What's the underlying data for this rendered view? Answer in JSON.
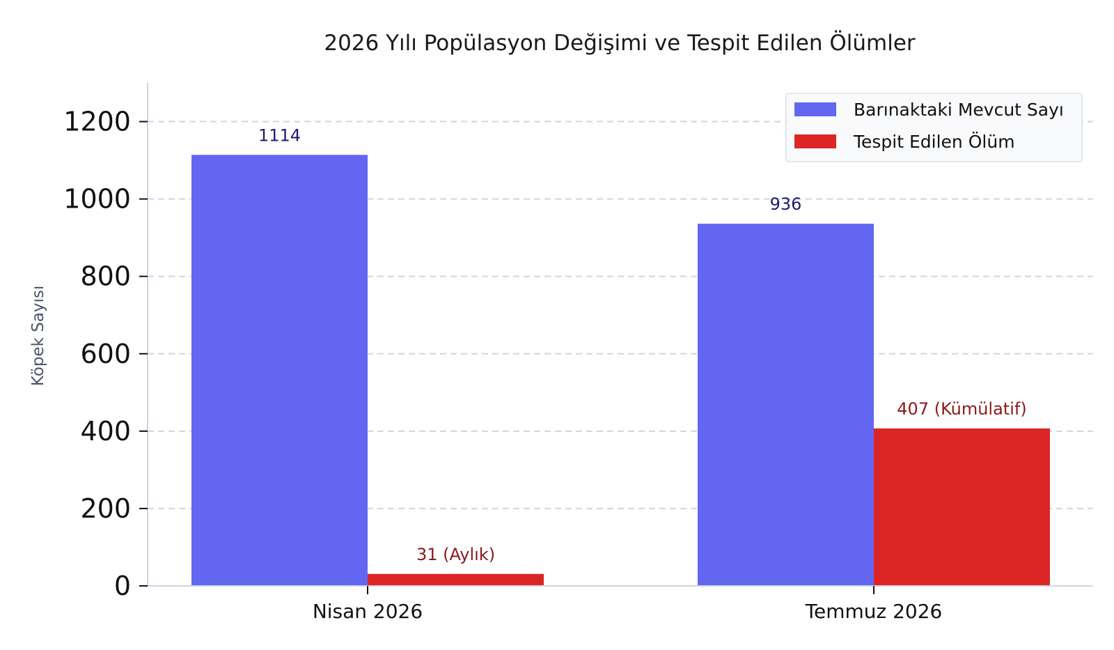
{
  "chart_data": {
    "type": "bar",
    "title": "2026 Yılı Popülasyon Değişimi ve Tespit Edilen Ölümler",
    "ylabel": "Köpek Sayısı",
    "xlabel": "",
    "categories": [
      "Nisan 2026",
      "Temmuz 2026"
    ],
    "ylim": [
      0,
      1300
    ],
    "yticks": [
      0,
      200,
      400,
      600,
      800,
      1000,
      1200
    ],
    "grid": "y-dashed",
    "legend_position": "top-right",
    "series": [
      {
        "name": "Barınaktaki Mevcut Sayı",
        "color": "#6366f1",
        "label_color": "#1e1b6e",
        "values": [
          1114,
          936
        ],
        "labels": [
          "1114",
          "936"
        ]
      },
      {
        "name": "Tespit Edilen Ölüm",
        "color": "#dc2626",
        "label_color": "#8b1a1a",
        "values": [
          31,
          407
        ],
        "labels": [
          "31 (Aylık)",
          "407 (Kümülatif)"
        ]
      }
    ]
  }
}
